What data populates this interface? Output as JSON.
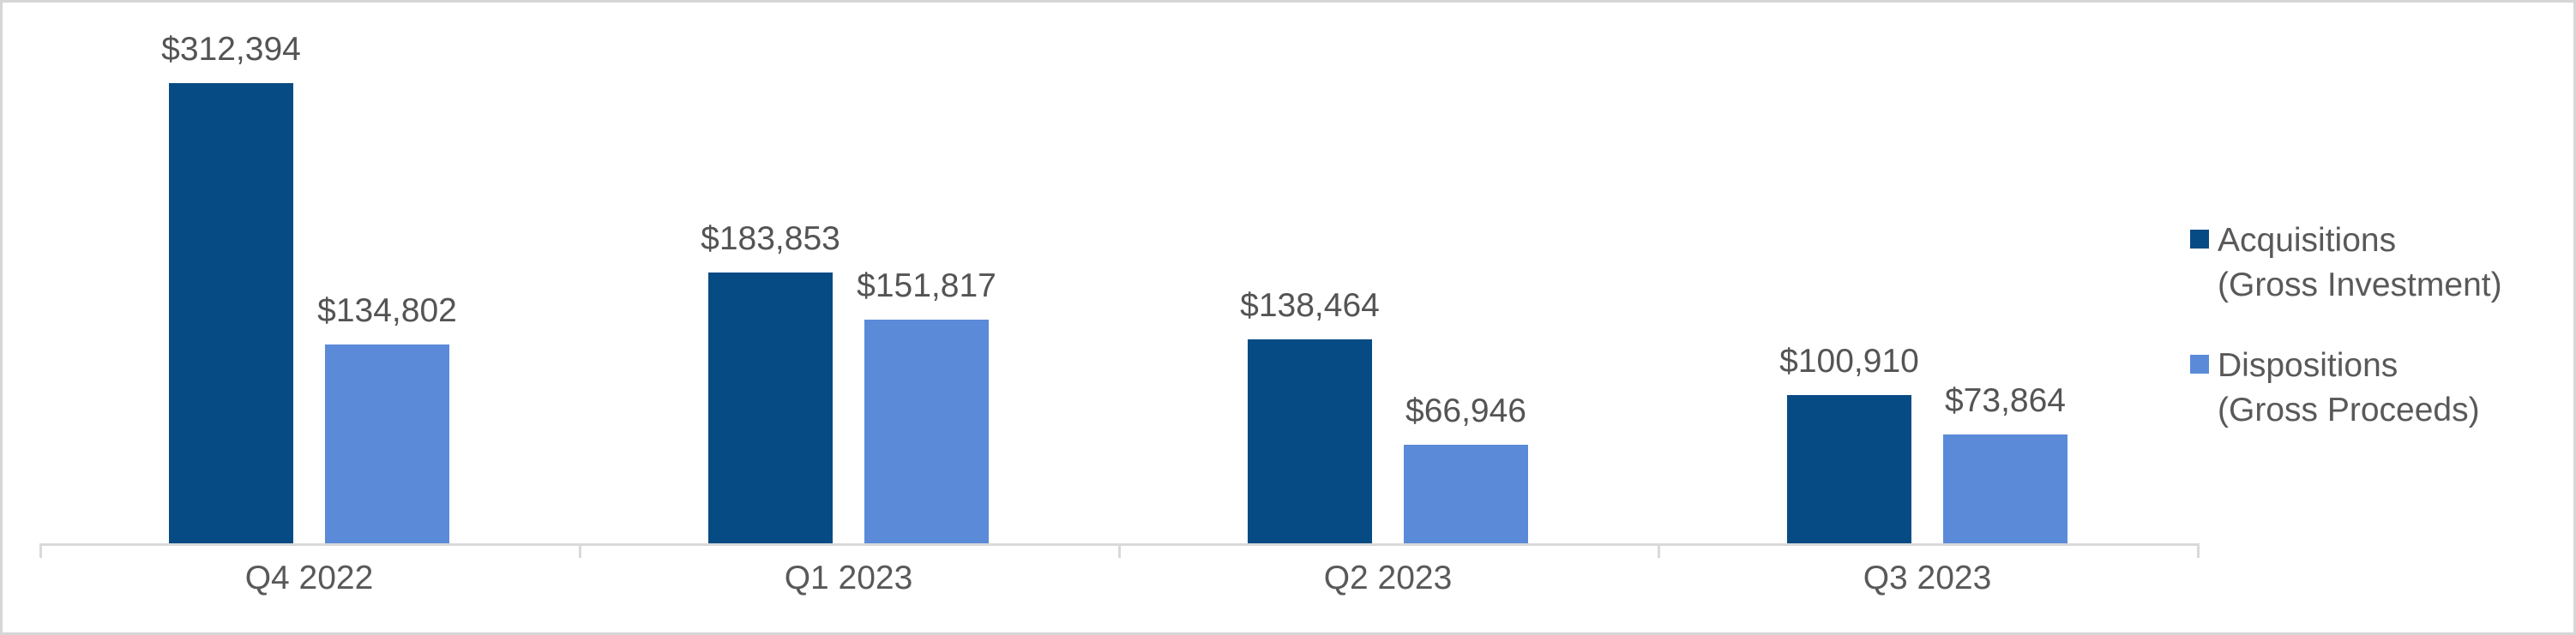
{
  "chart_data": {
    "type": "bar",
    "categories": [
      "Q4 2022",
      "Q1 2023",
      "Q2 2023",
      "Q3 2023"
    ],
    "series": [
      {
        "name": "Acquisitions (Gross Investment)",
        "color": "#074b84",
        "values": [
          312394,
          183853,
          138464,
          100910
        ],
        "labels": [
          "$312,394",
          "$183,853",
          "$138,464",
          "$100,910"
        ]
      },
      {
        "name": "Dispositions (Gross Proceeds)",
        "color": "#5b8bd8",
        "values": [
          134802,
          151817,
          66946,
          73864
        ],
        "labels": [
          "$134,802",
          "$151,817",
          "$66,946",
          "$73,864"
        ]
      }
    ],
    "title": "",
    "xlabel": "",
    "ylabel": "",
    "ylim": [
      0,
      320000
    ],
    "grid": false,
    "y_axis_visible": false,
    "legend_position": "right"
  },
  "legend": {
    "items": [
      {
        "line1": "Acquisitions",
        "line2": "(Gross Investment)",
        "color": "#074b84"
      },
      {
        "line1": "Dispositions",
        "line2": "(Gross Proceeds)",
        "color": "#5b8bd8"
      }
    ]
  },
  "colors": {
    "axis_line": "#d9d9d9",
    "canvas_border": "#d6d6d6",
    "label_text": "#545454",
    "axis_text": "#595959",
    "background": "#ffffff"
  }
}
